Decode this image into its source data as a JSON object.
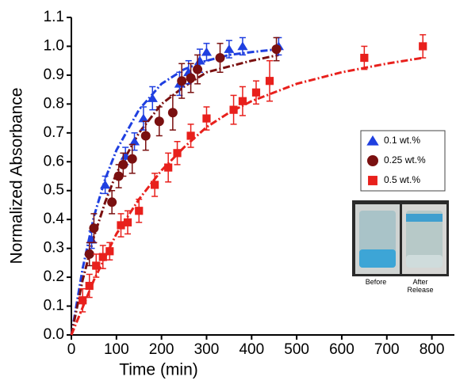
{
  "chart_data": {
    "type": "scatter",
    "xlabel": "Time (min)",
    "ylabel": "Normalized Absorbance",
    "xlim": [
      0,
      850
    ],
    "xticks": [
      0,
      100,
      200,
      300,
      400,
      500,
      600,
      700,
      800
    ],
    "ylim": [
      0,
      1.1
    ],
    "yticks": [
      {
        "value": 0,
        "label": "0.0"
      },
      0.1,
      0.2,
      0.3,
      0.4,
      0.5,
      0.6,
      0.7,
      0.8,
      0.9,
      {
        "value": 1,
        "label": "1.0"
      },
      1.1
    ],
    "legend": "right",
    "series": [
      {
        "name": "0.1 wt.%",
        "color": "#1f3fe0",
        "marker": "triangle",
        "x": [
          45,
          75,
          120,
          140,
          160,
          180,
          240,
          260,
          285,
          300,
          350,
          380,
          460
        ],
        "values": [
          0.33,
          0.52,
          0.62,
          0.67,
          0.75,
          0.82,
          0.87,
          0.91,
          0.95,
          0.98,
          0.99,
          1.0,
          1.0
        ],
        "errors": [
          0.03,
          0.03,
          0.03,
          0.03,
          0.04,
          0.04,
          0.04,
          0.04,
          0.04,
          0.03,
          0.03,
          0.03,
          0.03
        ]
      },
      {
        "name": "0.25 wt.%",
        "color": "#7a1010",
        "marker": "circle",
        "x": [
          40,
          50,
          90,
          105,
          115,
          135,
          165,
          195,
          225,
          245,
          265,
          280,
          330,
          455
        ],
        "values": [
          0.28,
          0.37,
          0.46,
          0.55,
          0.59,
          0.61,
          0.69,
          0.74,
          0.77,
          0.88,
          0.89,
          0.92,
          0.96,
          0.99
        ],
        "errors": [
          0.04,
          0.05,
          0.04,
          0.04,
          0.04,
          0.05,
          0.05,
          0.05,
          0.06,
          0.06,
          0.05,
          0.05,
          0.05,
          0.04
        ]
      },
      {
        "name": "0.5 wt.%",
        "color": "#e8201c",
        "marker": "square",
        "x": [
          25,
          40,
          55,
          70,
          85,
          110,
          125,
          150,
          185,
          215,
          235,
          265,
          300,
          360,
          380,
          410,
          440,
          650,
          780
        ],
        "values": [
          0.12,
          0.17,
          0.24,
          0.27,
          0.29,
          0.38,
          0.39,
          0.43,
          0.52,
          0.58,
          0.63,
          0.69,
          0.75,
          0.78,
          0.81,
          0.84,
          0.88,
          0.96,
          1.0
        ],
        "errors": [
          0.04,
          0.04,
          0.04,
          0.04,
          0.03,
          0.04,
          0.04,
          0.04,
          0.04,
          0.05,
          0.04,
          0.04,
          0.04,
          0.05,
          0.05,
          0.04,
          0.07,
          0.04,
          0.04
        ]
      }
    ],
    "fits": [
      {
        "color": "#1f3fe0",
        "x": [
          0,
          25,
          50,
          75,
          100,
          150,
          200,
          250,
          300,
          350,
          400,
          460
        ],
        "values": [
          0,
          0.23,
          0.41,
          0.54,
          0.64,
          0.78,
          0.87,
          0.92,
          0.95,
          0.97,
          0.98,
          0.99
        ]
      },
      {
        "color": "#7a1010",
        "x": [
          0,
          25,
          50,
          75,
          100,
          150,
          200,
          250,
          300,
          350,
          400,
          460
        ],
        "values": [
          0,
          0.19,
          0.34,
          0.46,
          0.56,
          0.7,
          0.8,
          0.86,
          0.91,
          0.93,
          0.95,
          0.97
        ]
      },
      {
        "color": "#e8201c",
        "x": [
          0,
          50,
          100,
          150,
          200,
          250,
          300,
          350,
          400,
          500,
          600,
          700,
          780
        ],
        "values": [
          0,
          0.19,
          0.35,
          0.47,
          0.57,
          0.65,
          0.72,
          0.77,
          0.81,
          0.87,
          0.91,
          0.94,
          0.96
        ]
      }
    ],
    "inset_labels": [
      "Before",
      "After Release"
    ]
  }
}
